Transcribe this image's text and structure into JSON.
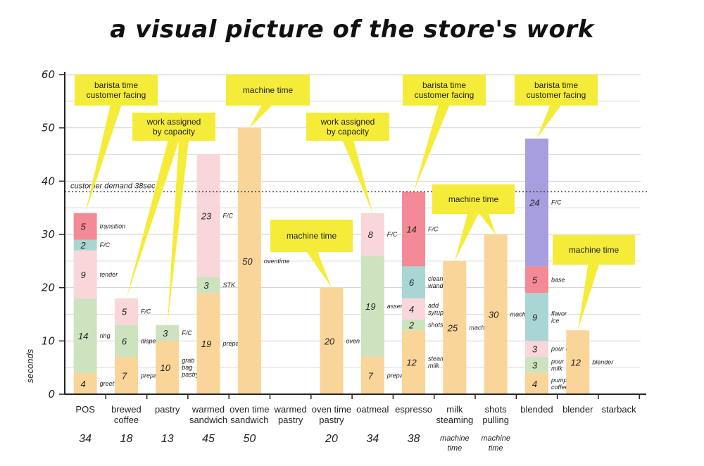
{
  "page": {
    "title": "a visual picture of the store's work"
  },
  "chart_data": {
    "type": "bar",
    "stacked": true,
    "ylabel": "seconds",
    "ylim": [
      0,
      60
    ],
    "yticks": [
      0,
      10,
      20,
      30,
      40,
      50,
      60
    ],
    "grid": true,
    "reference_line": {
      "value": 38,
      "label": "customer demand 38sec"
    },
    "colors": {
      "orange": "#f9d59a",
      "green": "#cde3bf",
      "lightpink": "#f9d6d9",
      "teal": "#a9d6d4",
      "red": "#f48a95",
      "purple": "#a79ee0",
      "callout": "#f5ec3a"
    },
    "categories": [
      {
        "name": "POS",
        "label_lines": [
          "POS"
        ],
        "total": "34",
        "note": [],
        "segments": [
          {
            "value": 4,
            "label": "greet",
            "color": "orange"
          },
          {
            "value": 14,
            "label": "ring",
            "color": "green"
          },
          {
            "value": 9,
            "label": "tender",
            "color": "lightpink"
          },
          {
            "value": 2,
            "label": "F/C",
            "color": "teal"
          },
          {
            "value": 5,
            "label": "transition",
            "color": "red"
          }
        ]
      },
      {
        "name": "brewed coffee",
        "label_lines": [
          "brewed",
          "coffee"
        ],
        "total": "18",
        "note": [],
        "segments": [
          {
            "value": 7,
            "label": "prepare",
            "color": "orange"
          },
          {
            "value": 6,
            "label": "dispense",
            "color": "green"
          },
          {
            "value": 5,
            "label": "F/C",
            "color": "lightpink"
          }
        ]
      },
      {
        "name": "pastry",
        "label_lines": [
          "pastry"
        ],
        "total": "13",
        "note": [],
        "segments": [
          {
            "value": 10,
            "label": "grab bag pastry",
            "color": "orange"
          },
          {
            "value": 3,
            "label": "F/C",
            "color": "green"
          }
        ]
      },
      {
        "name": "warmed sandwich",
        "label_lines": [
          "warmed",
          "sandwich"
        ],
        "total": "45",
        "note": [],
        "segments": [
          {
            "value": 19,
            "label": "prepare",
            "color": "orange"
          },
          {
            "value": 3,
            "label": "STK",
            "color": "green"
          },
          {
            "value": 23,
            "label": "F/C",
            "color": "lightpink"
          }
        ]
      },
      {
        "name": "oven time sandwich",
        "label_lines": [
          "oven time",
          "sandwich"
        ],
        "total": "50",
        "note": [],
        "segments": [
          {
            "value": 50,
            "label": "oventime",
            "color": "orange"
          }
        ]
      },
      {
        "name": "warmed pastry",
        "label_lines": [
          "warmed",
          "pastry"
        ],
        "total": "",
        "note": [],
        "segments": []
      },
      {
        "name": "oven time pastry",
        "label_lines": [
          "oven time",
          "pastry"
        ],
        "total": "20",
        "note": [],
        "segments": [
          {
            "value": 20,
            "label": "oven",
            "color": "orange"
          }
        ]
      },
      {
        "name": "oatmeal",
        "label_lines": [
          "oatmeal"
        ],
        "total": "34",
        "note": [],
        "segments": [
          {
            "value": 7,
            "label": "prepare",
            "color": "orange"
          },
          {
            "value": 19,
            "label": "assemble",
            "color": "green"
          },
          {
            "value": 8,
            "label": "F/C",
            "color": "lightpink"
          }
        ]
      },
      {
        "name": "espresso",
        "label_lines": [
          "espresso"
        ],
        "total": "38",
        "note": [],
        "segments": [
          {
            "value": 12,
            "label": "steam milk",
            "color": "orange"
          },
          {
            "value": 2,
            "label": "shots",
            "color": "green"
          },
          {
            "value": 4,
            "label": "add syrup",
            "color": "lightpink"
          },
          {
            "value": 6,
            "label": "clean wand",
            "color": "teal"
          },
          {
            "value": 14,
            "label": "F/C",
            "color": "red"
          }
        ]
      },
      {
        "name": "milk steaming",
        "label_lines": [
          "milk",
          "steaming"
        ],
        "total": "",
        "note": [
          "machine",
          "time"
        ],
        "segments": [
          {
            "value": 25,
            "label": "machine",
            "color": "orange"
          }
        ]
      },
      {
        "name": "shots pulling",
        "label_lines": [
          "shots",
          "pulling"
        ],
        "total": "",
        "note": [
          "machine",
          "time"
        ],
        "segments": [
          {
            "value": 30,
            "label": "machine",
            "color": "orange"
          }
        ]
      },
      {
        "name": "blended",
        "label_lines": [
          "blended"
        ],
        "total": "",
        "note": [],
        "segments": [
          {
            "value": 4,
            "label": "pump coffee",
            "color": "orange"
          },
          {
            "value": 3,
            "label": "pour milk",
            "color": "green"
          },
          {
            "value": 3,
            "label": "pour cup",
            "color": "lightpink"
          },
          {
            "value": 9,
            "label": "flavor ice",
            "color": "teal"
          },
          {
            "value": 5,
            "label": "base",
            "color": "red"
          },
          {
            "value": 24,
            "label": "F/C",
            "color": "purple"
          }
        ]
      },
      {
        "name": "blender",
        "label_lines": [
          "blender"
        ],
        "total": "",
        "note": [],
        "segments": [
          {
            "value": 12,
            "label": "blender",
            "color": "orange"
          }
        ]
      },
      {
        "name": "starback",
        "label_lines": [
          "starback"
        ],
        "total": "",
        "note": [],
        "segments": []
      }
    ],
    "annotations": [
      {
        "text": [
          "barista time",
          "customer facing"
        ],
        "category": "POS",
        "points_to": 34
      },
      {
        "text": [
          "work assigned",
          "by capacity"
        ],
        "category": "brewed coffee",
        "points_to": 18,
        "also_points": [
          "pastry",
          13
        ]
      },
      {
        "text": [
          "machine time"
        ],
        "category": "oven time sandwich",
        "points_to": 50
      },
      {
        "text": [
          "machine time"
        ],
        "category": "oven time pastry",
        "points_to": 20
      },
      {
        "text": [
          "work assigned",
          "by capacity"
        ],
        "category": "oatmeal",
        "points_to": 34
      },
      {
        "text": [
          "barista time",
          "customer facing"
        ],
        "category": "espresso",
        "points_to": 38
      },
      {
        "text": [
          "machine time"
        ],
        "category": "milk steaming",
        "points_to": 25,
        "also_points": [
          "shots pulling",
          30
        ]
      },
      {
        "text": [
          "barista time",
          "customer facing"
        ],
        "category": "blended",
        "points_to": 48
      },
      {
        "text": [
          "machine time"
        ],
        "category": "blender",
        "points_to": 12
      }
    ]
  }
}
